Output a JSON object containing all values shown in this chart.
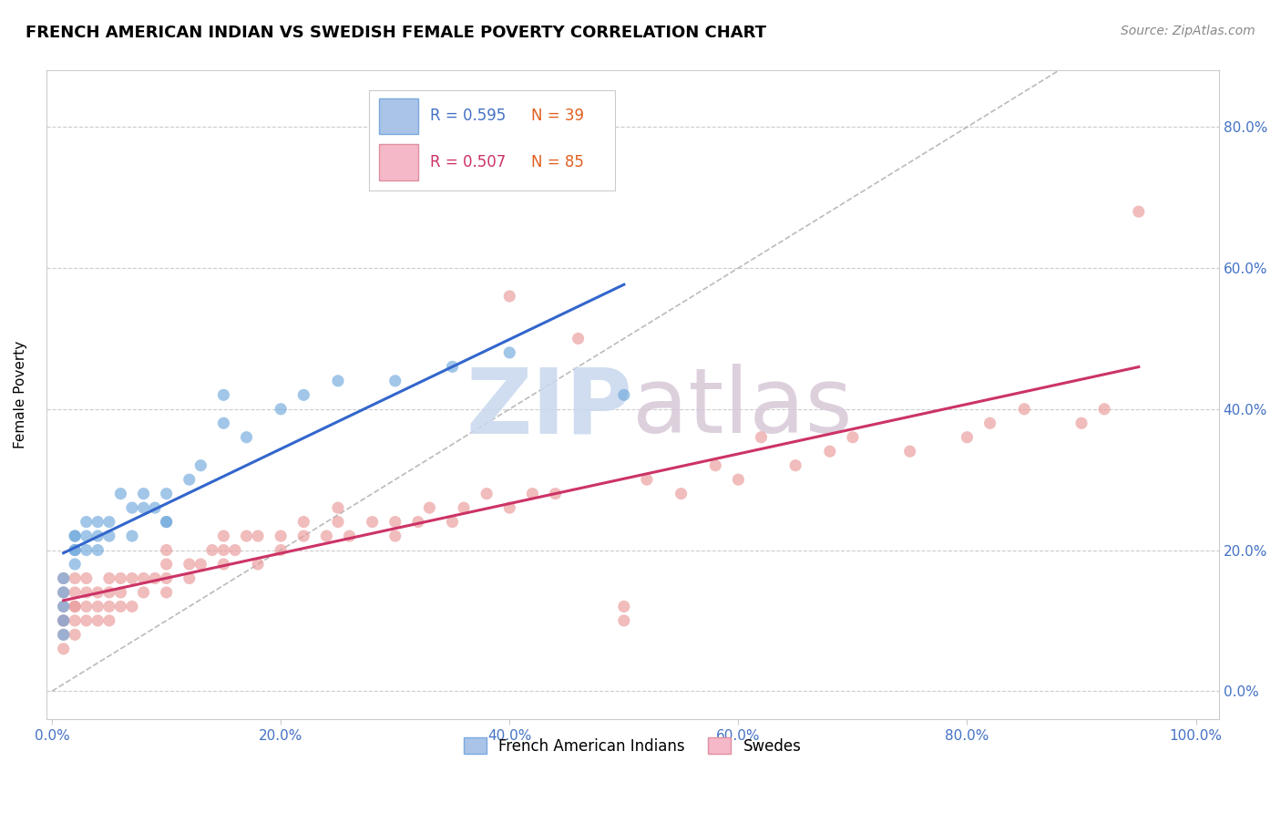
{
  "title": "FRENCH AMERICAN INDIAN VS SWEDISH FEMALE POVERTY CORRELATION CHART",
  "source": "Source: ZipAtlas.com",
  "xlabel_ticks": [
    "0.0%",
    "20.0%",
    "40.0%",
    "60.0%",
    "80.0%",
    "100.0%"
  ],
  "xlabel_vals": [
    0.0,
    0.2,
    0.4,
    0.6,
    0.8,
    1.0
  ],
  "ylabel_label": "Female Poverty",
  "ylabel_ticks": [
    "0.0%",
    "20.0%",
    "40.0%",
    "60.0%",
    "80.0%"
  ],
  "ylabel_vals": [
    0.0,
    0.2,
    0.4,
    0.6,
    0.8
  ],
  "blue_R": 0.595,
  "blue_N": 39,
  "pink_R": 0.507,
  "pink_N": 85,
  "blue_color": "#6fa8dc",
  "pink_color": "#ea9999",
  "blue_line_color": "#3366cc",
  "pink_line_color": "#cc3366",
  "diag_line_color": "#aaaaaa",
  "legend_blue_face": "#aac4e8",
  "legend_pink_face": "#f4b8c8",
  "blue_x": [
    0.01,
    0.01,
    0.01,
    0.01,
    0.01,
    0.02,
    0.02,
    0.02,
    0.02,
    0.02,
    0.03,
    0.03,
    0.03,
    0.04,
    0.04,
    0.04,
    0.05,
    0.05,
    0.06,
    0.07,
    0.07,
    0.08,
    0.08,
    0.09,
    0.1,
    0.1,
    0.1,
    0.12,
    0.13,
    0.15,
    0.15,
    0.17,
    0.2,
    0.22,
    0.25,
    0.3,
    0.35,
    0.4,
    0.5
  ],
  "blue_y": [
    0.08,
    0.1,
    0.12,
    0.14,
    0.16,
    0.18,
    0.2,
    0.2,
    0.22,
    0.22,
    0.2,
    0.22,
    0.24,
    0.2,
    0.22,
    0.24,
    0.22,
    0.24,
    0.28,
    0.22,
    0.26,
    0.26,
    0.28,
    0.26,
    0.28,
    0.24,
    0.24,
    0.3,
    0.32,
    0.38,
    0.42,
    0.36,
    0.4,
    0.42,
    0.44,
    0.44,
    0.46,
    0.48,
    0.42
  ],
  "pink_x": [
    0.01,
    0.01,
    0.01,
    0.01,
    0.01,
    0.01,
    0.01,
    0.02,
    0.02,
    0.02,
    0.02,
    0.02,
    0.02,
    0.03,
    0.03,
    0.03,
    0.03,
    0.04,
    0.04,
    0.04,
    0.05,
    0.05,
    0.05,
    0.05,
    0.06,
    0.06,
    0.06,
    0.07,
    0.07,
    0.08,
    0.08,
    0.09,
    0.1,
    0.1,
    0.1,
    0.1,
    0.12,
    0.12,
    0.13,
    0.14,
    0.15,
    0.15,
    0.15,
    0.16,
    0.17,
    0.18,
    0.18,
    0.2,
    0.2,
    0.22,
    0.22,
    0.24,
    0.25,
    0.25,
    0.26,
    0.28,
    0.3,
    0.3,
    0.32,
    0.33,
    0.35,
    0.36,
    0.38,
    0.4,
    0.4,
    0.42,
    0.44,
    0.46,
    0.5,
    0.5,
    0.52,
    0.55,
    0.58,
    0.6,
    0.62,
    0.65,
    0.68,
    0.7,
    0.75,
    0.8,
    0.82,
    0.85,
    0.9,
    0.92,
    0.95
  ],
  "pink_y": [
    0.06,
    0.08,
    0.1,
    0.1,
    0.12,
    0.14,
    0.16,
    0.08,
    0.1,
    0.12,
    0.12,
    0.14,
    0.16,
    0.1,
    0.12,
    0.14,
    0.16,
    0.1,
    0.12,
    0.14,
    0.1,
    0.12,
    0.14,
    0.16,
    0.12,
    0.14,
    0.16,
    0.12,
    0.16,
    0.14,
    0.16,
    0.16,
    0.14,
    0.16,
    0.18,
    0.2,
    0.16,
    0.18,
    0.18,
    0.2,
    0.18,
    0.2,
    0.22,
    0.2,
    0.22,
    0.18,
    0.22,
    0.2,
    0.22,
    0.22,
    0.24,
    0.22,
    0.24,
    0.26,
    0.22,
    0.24,
    0.22,
    0.24,
    0.24,
    0.26,
    0.24,
    0.26,
    0.28,
    0.26,
    0.56,
    0.28,
    0.28,
    0.5,
    0.1,
    0.12,
    0.3,
    0.28,
    0.32,
    0.3,
    0.36,
    0.32,
    0.34,
    0.36,
    0.34,
    0.36,
    0.38,
    0.4,
    0.38,
    0.4,
    0.68
  ]
}
